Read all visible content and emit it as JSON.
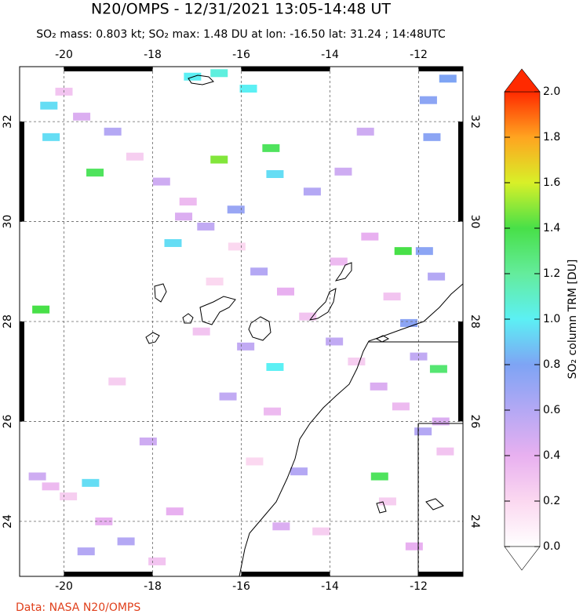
{
  "map": {
    "title": "N20/OMPS - 12/31/2021 13:05-14:48 UT",
    "subtitle": "SO₂ mass: 0.803 kt; SO₂ max: 1.48 DU at lon: -16.50 lat: 31.24 ; 14:48UTC",
    "footer": "Data: NASA N20/OMPS",
    "xlim": [
      -21,
      -11
    ],
    "ylim": [
      22.9,
      33.1
    ],
    "xticks": [
      -20,
      -18,
      -16,
      -14,
      -12
    ],
    "yticks": [
      24,
      26,
      28,
      30,
      32
    ],
    "grid": true,
    "pixels": {
      "lon": [
        -16.5,
        -15.33,
        -12.35,
        -12.88,
        -11.55,
        -20.52,
        -19.3,
        -15.24,
        -17.1,
        -15.84,
        -15.24,
        -16.5,
        -11.78,
        -11.7,
        -11.87,
        -12.22,
        -20.29,
        -20.34,
        -17.54,
        -19.4,
        -11.34,
        -16.12,
        -20.0,
        -19.6,
        -18.9,
        -18.4,
        -17.8,
        -17.2,
        -16.8,
        -16.1,
        -15.6,
        -15.0,
        -14.5,
        -13.9,
        -13.4,
        -12.9,
        -12.4,
        -11.9,
        -11.4,
        -20.6,
        -19.9,
        -19.1,
        -18.6,
        -17.9,
        -17.3,
        -16.6,
        -15.9,
        -15.3,
        -14.7,
        -14.2,
        -13.7,
        -13.1,
        -12.6,
        -12.0,
        -11.5,
        -20.3,
        -19.5,
        -18.8,
        -18.1,
        -17.5,
        -16.9,
        -16.3,
        -15.7,
        -15.1,
        -14.4,
        -13.8,
        -13.2,
        -12.7,
        -12.1,
        -11.6
      ],
      "lat": [
        31.24,
        31.47,
        29.41,
        24.9,
        27.05,
        28.24,
        30.98,
        27.09,
        32.9,
        32.66,
        30.95,
        32.97,
        32.43,
        31.69,
        29.41,
        27.97,
        31.69,
        32.32,
        29.57,
        24.77,
        32.86,
        30.24,
        32.6,
        32.1,
        31.8,
        31.3,
        30.8,
        30.4,
        29.9,
        29.5,
        29.0,
        28.6,
        28.1,
        27.6,
        27.2,
        26.7,
        26.3,
        25.8,
        25.4,
        24.9,
        24.5,
        24.0,
        23.6,
        23.2,
        30.1,
        28.8,
        27.5,
        26.2,
        25.0,
        23.8,
        31.0,
        29.7,
        28.5,
        27.3,
        26.0,
        24.7,
        23.4,
        26.8,
        25.6,
        24.2,
        27.8,
        26.5,
        25.2,
        23.9,
        30.6,
        29.2,
        31.8,
        24.4,
        23.5,
        28.9
      ],
      "values": [
        1.48,
        1.35,
        1.4,
        1.35,
        1.3,
        1.4,
        1.35,
        1.0,
        1.0,
        1.0,
        0.95,
        1.05,
        0.75,
        0.75,
        0.75,
        0.75,
        0.95,
        0.95,
        0.95,
        0.95,
        0.8,
        0.7,
        0.3,
        0.45,
        0.6,
        0.25,
        0.5,
        0.35,
        0.55,
        0.2,
        0.6,
        0.4,
        0.3,
        0.55,
        0.25,
        0.45,
        0.35,
        0.6,
        0.3,
        0.5,
        0.25,
        0.4,
        0.6,
        0.3,
        0.45,
        0.2,
        0.55,
        0.35,
        0.6,
        0.25,
        0.5,
        0.4,
        0.3,
        0.55,
        0.45,
        0.35,
        0.6,
        0.25,
        0.5,
        0.4,
        0.3,
        0.55,
        0.2,
        0.45,
        0.6,
        0.35,
        0.5,
        0.25,
        0.4,
        0.6
      ]
    },
    "colorbar": {
      "label": "SO₂ column TRM [DU]",
      "range": [
        0,
        2
      ],
      "ticks": [
        {
          "value": 0,
          "label": "0.0"
        },
        0.2,
        0.4,
        0.6,
        0.8,
        {
          "value": 1,
          "label": "1.0"
        },
        1.2,
        1.4,
        1.6,
        1.8,
        {
          "value": 2,
          "label": "2.0"
        }
      ],
      "colors": [
        "#ffffff",
        "#fbd8f0",
        "#e8b0f0",
        "#b4a8f4",
        "#7ea4f4",
        "#5cf0f4",
        "#64ec9c",
        "#48e048",
        "#d8f028",
        "#ffa420",
        "#ff2a00"
      ]
    }
  }
}
